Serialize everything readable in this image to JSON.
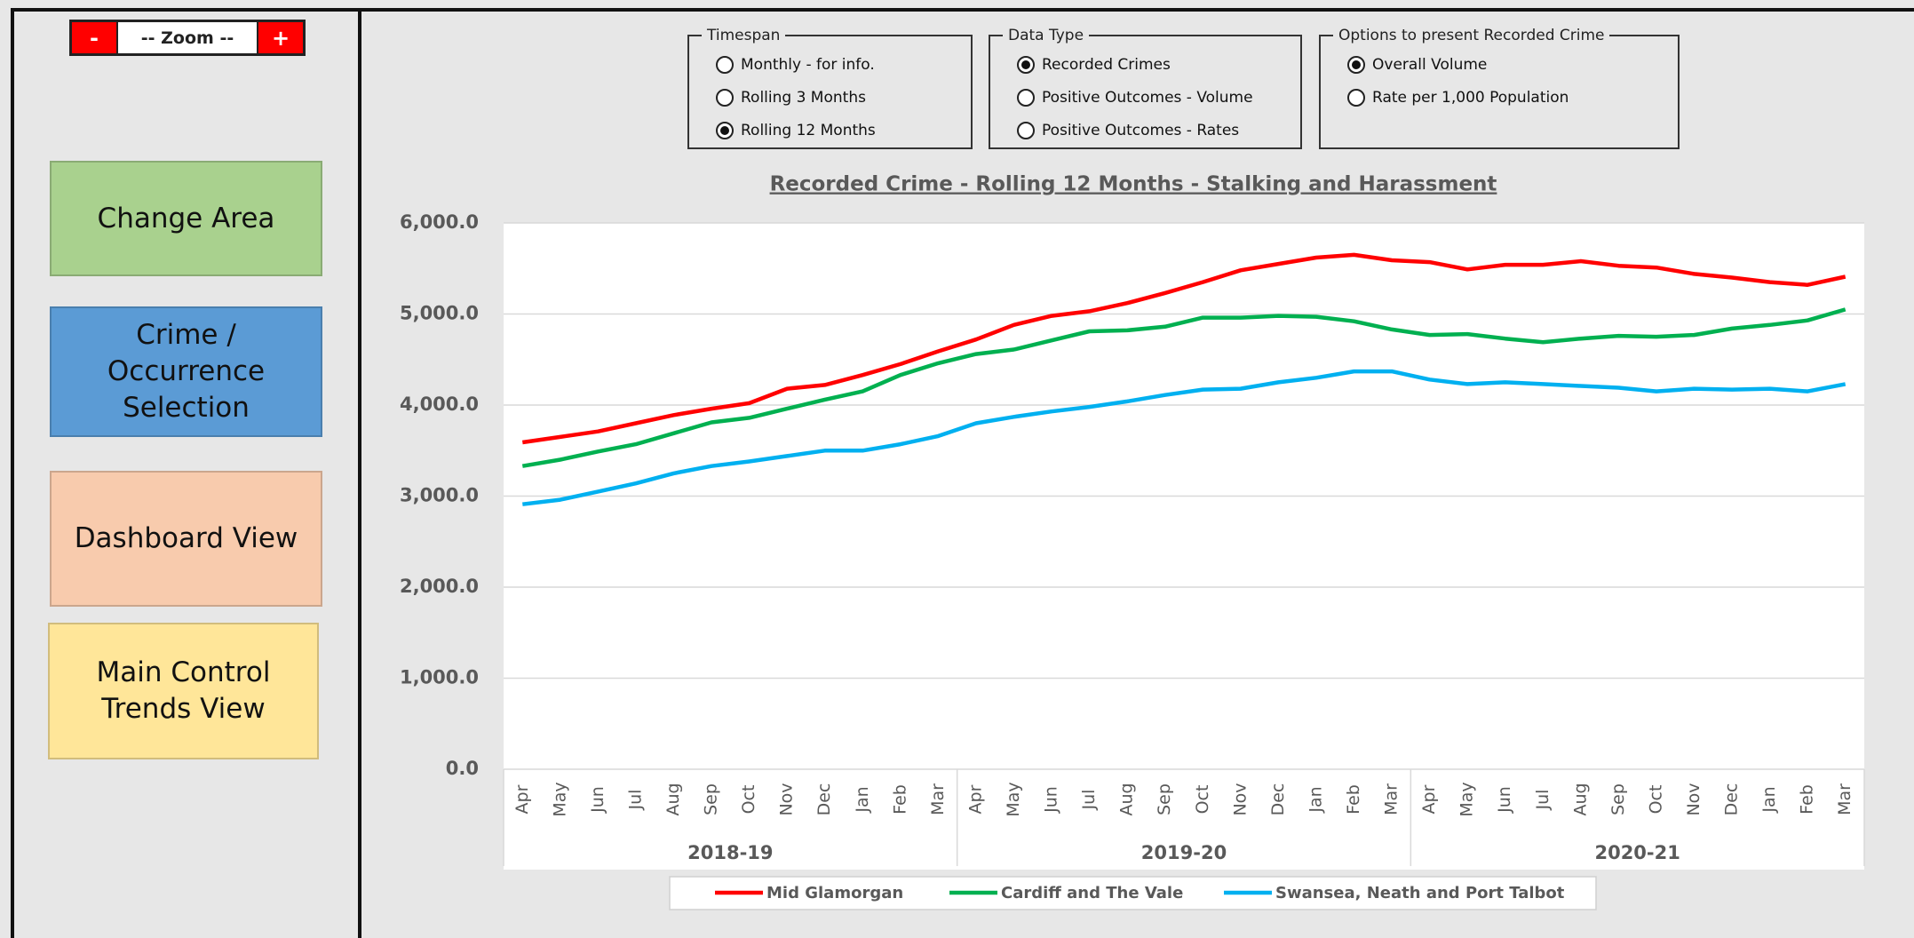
{
  "zoom": {
    "minus": "-",
    "label": "-- Zoom --",
    "plus": "+"
  },
  "buttons": [
    {
      "label": "Change Area",
      "color": "#a9d18e"
    },
    {
      "label": "Crime / Occurrence Selection",
      "color": "#5b9bd5"
    },
    {
      "label": "Dashboard View",
      "color": "#f8cbad"
    },
    {
      "label": "Main Control Trends View",
      "color": "#ffe699"
    }
  ],
  "option_groups": [
    {
      "legend": "Timespan",
      "options": [
        {
          "label": "Monthly - for info.",
          "selected": false
        },
        {
          "label": "Rolling 3 Months",
          "selected": false
        },
        {
          "label": "Rolling 12 Months",
          "selected": true
        }
      ]
    },
    {
      "legend": "Data Type",
      "options": [
        {
          "label": "Recorded Crimes",
          "selected": true
        },
        {
          "label": "Positive Outcomes - Volume",
          "selected": false
        },
        {
          "label": "Positive Outcomes - Rates",
          "selected": false
        }
      ]
    },
    {
      "legend": "Options to present Recorded Crime",
      "options": [
        {
          "label": "Overall Volume",
          "selected": true
        },
        {
          "label": "Rate per 1,000 Population",
          "selected": false
        }
      ]
    }
  ],
  "chart_data": {
    "type": "line",
    "title": "Recorded Crime - Rolling 12 Months - Stalking and Harassment",
    "categories": [
      "Apr",
      "May",
      "Jun",
      "Jul",
      "Aug",
      "Sep",
      "Oct",
      "Nov",
      "Dec",
      "Jan",
      "Feb",
      "Mar",
      "Apr",
      "May",
      "Jun",
      "Jul",
      "Aug",
      "Sep",
      "Oct",
      "Nov",
      "Dec",
      "Jan",
      "Feb",
      "Mar",
      "Apr",
      "May",
      "Jun",
      "Jul",
      "Aug",
      "Sep",
      "Oct",
      "Nov",
      "Dec",
      "Jan",
      "Feb",
      "Mar"
    ],
    "groups": [
      "2018-19",
      "2019-20",
      "2020-21"
    ],
    "series": [
      {
        "name": "Mid Glamorgan",
        "color": "#ff0000",
        "values": [
          3590,
          3650,
          3710,
          3800,
          3890,
          3960,
          4020,
          4180,
          4220,
          4330,
          4450,
          4590,
          4720,
          4880,
          4980,
          5030,
          5120,
          5230,
          5350,
          5480,
          5550,
          5620,
          5650,
          5590,
          5570,
          5490,
          5540,
          5540,
          5580,
          5530,
          5510,
          5440,
          5400,
          5350,
          5320,
          5410
        ]
      },
      {
        "name": "Cardiff and The Vale",
        "color": "#00b050",
        "values": [
          3330,
          3400,
          3490,
          3570,
          3690,
          3810,
          3860,
          3960,
          4060,
          4150,
          4330,
          4460,
          4560,
          4610,
          4710,
          4810,
          4820,
          4860,
          4960,
          4960,
          4980,
          4970,
          4920,
          4830,
          4770,
          4780,
          4730,
          4690,
          4730,
          4760,
          4750,
          4770,
          4840,
          4880,
          4930,
          5050
        ]
      },
      {
        "name": "Swansea, Neath and Port Talbot",
        "color": "#00b0f0",
        "values": [
          2910,
          2960,
          3050,
          3140,
          3250,
          3330,
          3380,
          3440,
          3500,
          3500,
          3570,
          3660,
          3800,
          3870,
          3930,
          3980,
          4040,
          4110,
          4170,
          4180,
          4250,
          4300,
          4370,
          4370,
          4280,
          4230,
          4250,
          4230,
          4210,
          4190,
          4150,
          4180,
          4170,
          4180,
          4150,
          4230
        ]
      }
    ],
    "ylim": [
      0,
      6000
    ],
    "yticks": [
      {
        "value": 0,
        "label": "0.0"
      },
      {
        "value": 1000,
        "label": "1,000.0"
      },
      {
        "value": 2000,
        "label": "2,000.0"
      },
      {
        "value": 3000,
        "label": "3,000.0"
      },
      {
        "value": 4000,
        "label": "4,000.0"
      },
      {
        "value": 5000,
        "label": "5,000.0"
      },
      {
        "value": 6000,
        "label": "6,000.0"
      }
    ],
    "grid": true
  }
}
